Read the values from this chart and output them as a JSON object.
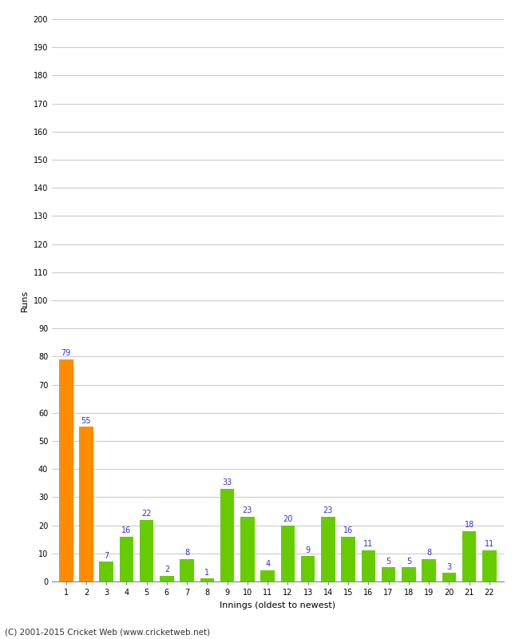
{
  "innings": [
    1,
    2,
    3,
    4,
    5,
    6,
    7,
    8,
    9,
    10,
    11,
    12,
    13,
    14,
    15,
    16,
    17,
    18,
    19,
    20,
    21,
    22
  ],
  "values": [
    79,
    55,
    7,
    16,
    22,
    2,
    8,
    1,
    33,
    23,
    4,
    20,
    9,
    23,
    16,
    11,
    5,
    5,
    8,
    3,
    18,
    11
  ],
  "bar_colors": [
    "#ff8c00",
    "#ff8c00",
    "#66cc00",
    "#66cc00",
    "#66cc00",
    "#66cc00",
    "#66cc00",
    "#66cc00",
    "#66cc00",
    "#66cc00",
    "#66cc00",
    "#66cc00",
    "#66cc00",
    "#66cc00",
    "#66cc00",
    "#66cc00",
    "#66cc00",
    "#66cc00",
    "#66cc00",
    "#66cc00",
    "#66cc00",
    "#66cc00"
  ],
  "xlabel": "Innings (oldest to newest)",
  "ylabel": "Runs",
  "ylim": [
    0,
    200
  ],
  "yticks": [
    0,
    10,
    20,
    30,
    40,
    50,
    60,
    70,
    80,
    90,
    100,
    110,
    120,
    130,
    140,
    150,
    160,
    170,
    180,
    190,
    200
  ],
  "label_color": "#3333cc",
  "label_fontsize": 7,
  "axis_fontsize": 8,
  "tick_fontsize": 7,
  "footer": "(C) 2001-2015 Cricket Web (www.cricketweb.net)",
  "background_color": "#ffffff",
  "plot_background": "#ffffff",
  "grid_color": "#cccccc"
}
